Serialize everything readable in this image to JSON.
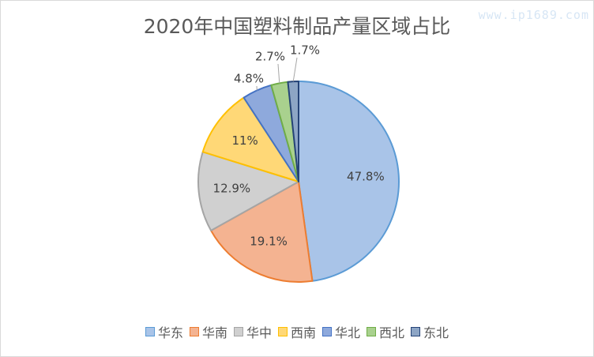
{
  "watermark": "www.ip1689.com",
  "chart_data": {
    "type": "pie",
    "title": "2020年中国塑料制品产量区域占比",
    "legend_position": "bottom",
    "slices": [
      {
        "name": "华东",
        "value": 47.8,
        "label": "47.8%",
        "fill": "#a9c4e8",
        "stroke": "#5b9bd5"
      },
      {
        "name": "华南",
        "value": 19.1,
        "label": "19.1%",
        "fill": "#f4b391",
        "stroke": "#ed7d31"
      },
      {
        "name": "华中",
        "value": 12.9,
        "label": "12.9%",
        "fill": "#d0d0d0",
        "stroke": "#a5a5a5"
      },
      {
        "name": "西南",
        "value": 11,
        "label": "11%",
        "fill": "#ffd877",
        "stroke": "#ffc000"
      },
      {
        "name": "华北",
        "value": 4.8,
        "label": "4.8%",
        "fill": "#8ea9dc",
        "stroke": "#4472c4"
      },
      {
        "name": "西北",
        "value": 2.7,
        "label": "2.7%",
        "fill": "#a9d18e",
        "stroke": "#70ad47"
      },
      {
        "name": "东北",
        "value": 1.7,
        "label": "1.7%",
        "fill": "#8da5c5",
        "stroke": "#264478"
      }
    ]
  }
}
